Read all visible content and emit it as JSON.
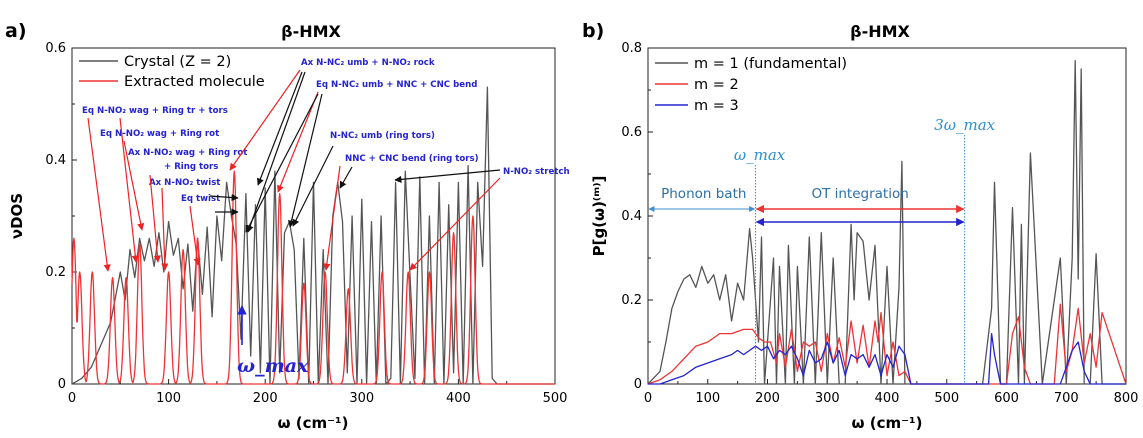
{
  "chart_data": [
    {
      "panel": "a)",
      "type": "line",
      "title": "β-HMX",
      "xlabel": "ω (cm⁻¹)",
      "ylabel": "νDOS",
      "xlim": [
        0,
        500
      ],
      "ylim": [
        0,
        0.6
      ],
      "xticks": [
        "0",
        "100",
        "200",
        "300",
        "400",
        "500"
      ],
      "yticks": [
        "0",
        "0.2",
        "0.4",
        "0.6"
      ],
      "legend_position": "top-left",
      "series": [
        {
          "name": "Crystal (Z = 2)",
          "color": "#555555",
          "x": [
            0,
            10,
            20,
            30,
            40,
            50,
            55,
            60,
            65,
            70,
            75,
            80,
            85,
            90,
            95,
            100,
            105,
            110,
            115,
            120,
            125,
            130,
            135,
            140,
            145,
            150,
            155,
            160,
            165,
            170,
            175,
            180,
            185,
            190,
            195,
            200,
            205,
            210,
            215,
            220,
            225,
            230,
            235,
            240,
            245,
            250,
            255,
            260,
            265,
            270,
            275,
            280,
            285,
            290,
            295,
            300,
            305,
            310,
            315,
            320,
            325,
            330,
            335,
            340,
            345,
            350,
            355,
            360,
            365,
            370,
            375,
            380,
            385,
            390,
            395,
            400,
            405,
            410,
            415,
            420,
            425,
            430,
            435,
            440,
            450,
            500
          ],
          "y": [
            0,
            0.01,
            0.03,
            0.07,
            0.11,
            0.2,
            0.15,
            0.24,
            0.19,
            0.26,
            0.22,
            0.26,
            0.21,
            0.27,
            0.2,
            0.29,
            0.23,
            0.26,
            0.17,
            0.25,
            0.13,
            0.26,
            0.16,
            0.28,
            0.12,
            0.3,
            0.22,
            0.36,
            0.3,
            0.25,
            0.08,
            0.34,
            0.05,
            0.32,
            0.02,
            0.35,
            0.0,
            0.38,
            0.02,
            0.27,
            0.29,
            0.24,
            0.01,
            0.26,
            0.0,
            0.36,
            0.0,
            0.24,
            0.0,
            0.3,
            0.36,
            0.29,
            0.02,
            0.3,
            0.0,
            0.33,
            0.0,
            0.29,
            0.0,
            0.3,
            0.0,
            0.01,
            0.36,
            0.0,
            0.38,
            0.19,
            0.01,
            0.37,
            0.0,
            0.3,
            0.0,
            0.36,
            0.0,
            0.32,
            0.02,
            0.36,
            0.0,
            0.39,
            0.0,
            0.36,
            0.21,
            0.53,
            0.01,
            0.0,
            0.0,
            0.0
          ]
        },
        {
          "name": "Extracted molecule",
          "color": "#ee3333",
          "peaks": [
            {
              "x": 2,
              "y": 0.26
            },
            {
              "x": 8,
              "y": 0.2
            },
            {
              "x": 21,
              "y": 0.2
            },
            {
              "x": 42,
              "y": 0.19
            },
            {
              "x": 56,
              "y": 0.19
            },
            {
              "x": 70,
              "y": 0.25
            },
            {
              "x": 100,
              "y": 0.2
            },
            {
              "x": 115,
              "y": 0.24
            },
            {
              "x": 130,
              "y": 0.26
            },
            {
              "x": 168,
              "y": 0.38
            },
            {
              "x": 215,
              "y": 0.34
            },
            {
              "x": 240,
              "y": 0.18
            },
            {
              "x": 262,
              "y": 0.2
            },
            {
              "x": 286,
              "y": 0.17
            },
            {
              "x": 321,
              "y": 0.2
            },
            {
              "x": 348,
              "y": 0.2
            },
            {
              "x": 370,
              "y": 0.2
            },
            {
              "x": 395,
              "y": 0.27
            },
            {
              "x": 415,
              "y": 0.3
            },
            {
              "x": 500,
              "y": 0.0
            }
          ]
        }
      ],
      "annotations": [
        "Ax N-NC₂ umb + N-NO₂ rock",
        "Eq N-NC₂ umb + NNC + CNC bend",
        "Eq N-NO₂ wag + Ring tr + tors",
        "Eq N-NO₂ wag + Ring rot",
        "Ax N-NO₂ wag + Ring rot",
        "+ Ring tors",
        "Ax N-NO₂ twist",
        "Eq twist",
        "N-NC₂ umb (ring tors)",
        "NNC + CNC bend (ring tors)",
        "N-NO₂ stretch",
        "ω_max"
      ]
    },
    {
      "panel": "b)",
      "type": "line",
      "title": "β-HMX",
      "xlabel": "ω (cm⁻¹)",
      "ylabel": "P[g(ω)⁽ᵐ⁾]",
      "xlim": [
        0,
        800
      ],
      "ylim": [
        0,
        0.8
      ],
      "xticks": [
        "0",
        "100",
        "200",
        "300",
        "400",
        "500",
        "600",
        "700",
        "800"
      ],
      "yticks": [
        "0",
        "0.2",
        "0.4",
        "0.6",
        "0.8"
      ],
      "legend_position": "top-left",
      "series": [
        {
          "name": "m = 1 (fundamental)",
          "color": "#555555",
          "x": [
            0,
            20,
            30,
            40,
            50,
            60,
            70,
            80,
            90,
            100,
            110,
            120,
            130,
            140,
            150,
            160,
            170,
            175,
            185,
            190,
            195,
            210,
            215,
            220,
            230,
            235,
            245,
            250,
            260,
            270,
            280,
            290,
            300,
            310,
            320,
            330,
            340,
            345,
            350,
            360,
            370,
            380,
            390,
            400,
            410,
            420,
            425,
            430,
            440,
            560,
            575,
            580,
            590,
            600,
            610,
            620,
            625,
            630,
            640,
            660,
            690,
            700,
            710,
            715,
            720,
            725,
            730,
            740,
            750,
            760,
            800
          ],
          "y": [
            0,
            0.03,
            0.1,
            0.18,
            0.22,
            0.25,
            0.26,
            0.23,
            0.28,
            0.24,
            0.26,
            0.2,
            0.26,
            0.15,
            0.24,
            0.2,
            0.37,
            0.3,
            0.1,
            0.35,
            0.0,
            0.3,
            0.0,
            0.28,
            0.0,
            0.33,
            0.0,
            0.28,
            0.0,
            0.35,
            0.0,
            0.36,
            0.0,
            0.3,
            0.0,
            0.0,
            0.38,
            0.2,
            0.36,
            0.34,
            0.2,
            0.33,
            0.0,
            0.28,
            0.0,
            0.23,
            0.53,
            0.0,
            0.0,
            0.0,
            0.18,
            0.48,
            0.0,
            0.0,
            0.42,
            0.0,
            0.38,
            0.0,
            0.55,
            0.0,
            0.3,
            0.0,
            0.3,
            0.77,
            0.25,
            0.75,
            0.0,
            0.0,
            0.31,
            0.0,
            0.0
          ]
        },
        {
          "name": "m = 2",
          "color": "#ee3333",
          "x": [
            0,
            20,
            40,
            60,
            80,
            100,
            120,
            140,
            160,
            175,
            185,
            195,
            205,
            215,
            220,
            230,
            240,
            250,
            260,
            270,
            280,
            290,
            300,
            310,
            320,
            330,
            340,
            350,
            360,
            370,
            380,
            385,
            390,
            400,
            410,
            420,
            430,
            440,
            540,
            560,
            600,
            610,
            620,
            630,
            640,
            680,
            690,
            700,
            710,
            720,
            730,
            740,
            750,
            760,
            800
          ],
          "y": [
            0,
            0.01,
            0.03,
            0.06,
            0.09,
            0.1,
            0.12,
            0.12,
            0.13,
            0.13,
            0.11,
            0.1,
            0.1,
            0.05,
            0.12,
            0.04,
            0.13,
            0.03,
            0.1,
            0.09,
            0.1,
            0.03,
            0.12,
            0.05,
            0.11,
            0.04,
            0.15,
            0.05,
            0.14,
            0.04,
            0.15,
            0.1,
            0.17,
            0.02,
            0.1,
            0.02,
            0.03,
            0.0,
            0.0,
            0.0,
            0.0,
            0.12,
            0.16,
            0.04,
            0.0,
            0.0,
            0.19,
            0.03,
            0.08,
            0.18,
            0.05,
            0.12,
            0.04,
            0.17,
            0.0
          ]
        },
        {
          "name": "m = 3",
          "color": "#2323d0",
          "x": [
            0,
            20,
            40,
            60,
            80,
            100,
            120,
            140,
            150,
            160,
            170,
            180,
            190,
            200,
            210,
            220,
            230,
            240,
            250,
            260,
            270,
            280,
            290,
            300,
            310,
            320,
            330,
            340,
            350,
            360,
            370,
            380,
            390,
            400,
            410,
            420,
            430,
            440,
            560,
            570,
            575,
            580,
            590,
            690,
            700,
            710,
            720,
            730,
            740,
            800
          ],
          "y": [
            0,
            0.0,
            0.01,
            0.02,
            0.04,
            0.05,
            0.06,
            0.07,
            0.08,
            0.07,
            0.08,
            0.09,
            0.08,
            0.09,
            0.06,
            0.08,
            0.07,
            0.09,
            0.06,
            0.02,
            0.08,
            0.05,
            0.06,
            0.1,
            0.05,
            0.08,
            0.02,
            0.07,
            0.06,
            0.07,
            0.04,
            0.07,
            0.02,
            0.07,
            0.04,
            0.09,
            0.07,
            0.0,
            0.0,
            0.0,
            0.12,
            0.07,
            0.0,
            0.0,
            0.04,
            0.08,
            0.1,
            0.03,
            0.0,
            0.0
          ]
        }
      ],
      "annotations": [
        {
          "text": "ω_max",
          "x": 180
        },
        {
          "text": "3ω_max",
          "x": 530
        },
        {
          "text": "Phonon bath",
          "from": 0,
          "to": 180
        },
        {
          "text": "OT integration",
          "from": 180,
          "to": 530
        }
      ]
    }
  ]
}
